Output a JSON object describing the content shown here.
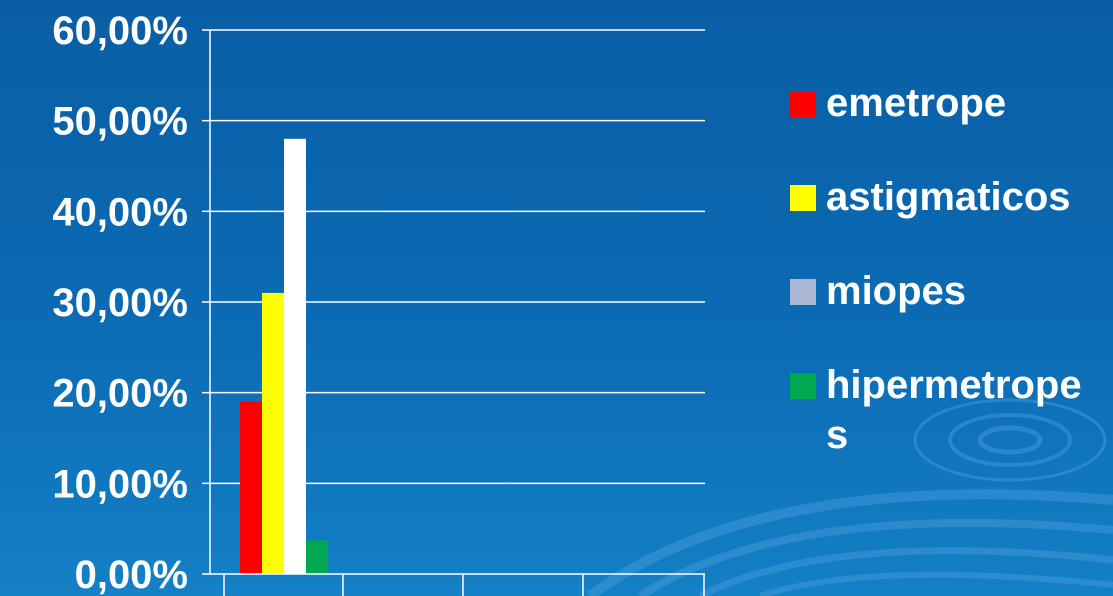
{
  "chart_data": {
    "type": "bar",
    "title": "",
    "xlabel": "",
    "ylabel": "",
    "categories": [
      ""
    ],
    "ylim": [
      0,
      0.6
    ],
    "yticks": [
      "0,00%",
      "10,00%",
      "20,00%",
      "30,00%",
      "40,00%",
      "50,00%",
      "60,00%"
    ],
    "grid": true,
    "legend_position": "right",
    "series": [
      {
        "name": "emetrope",
        "values": [
          0.19
        ],
        "color": "#ff0000"
      },
      {
        "name": "astigmaticos",
        "values": [
          0.31
        ],
        "color": "#ffff00"
      },
      {
        "name": "miopes",
        "values": [
          0.48
        ],
        "color": "#ffffff",
        "legend_color": "#aab8d4"
      },
      {
        "name": "hipermetropes",
        "values": [
          0.037
        ],
        "color": "#00a850"
      }
    ]
  }
}
